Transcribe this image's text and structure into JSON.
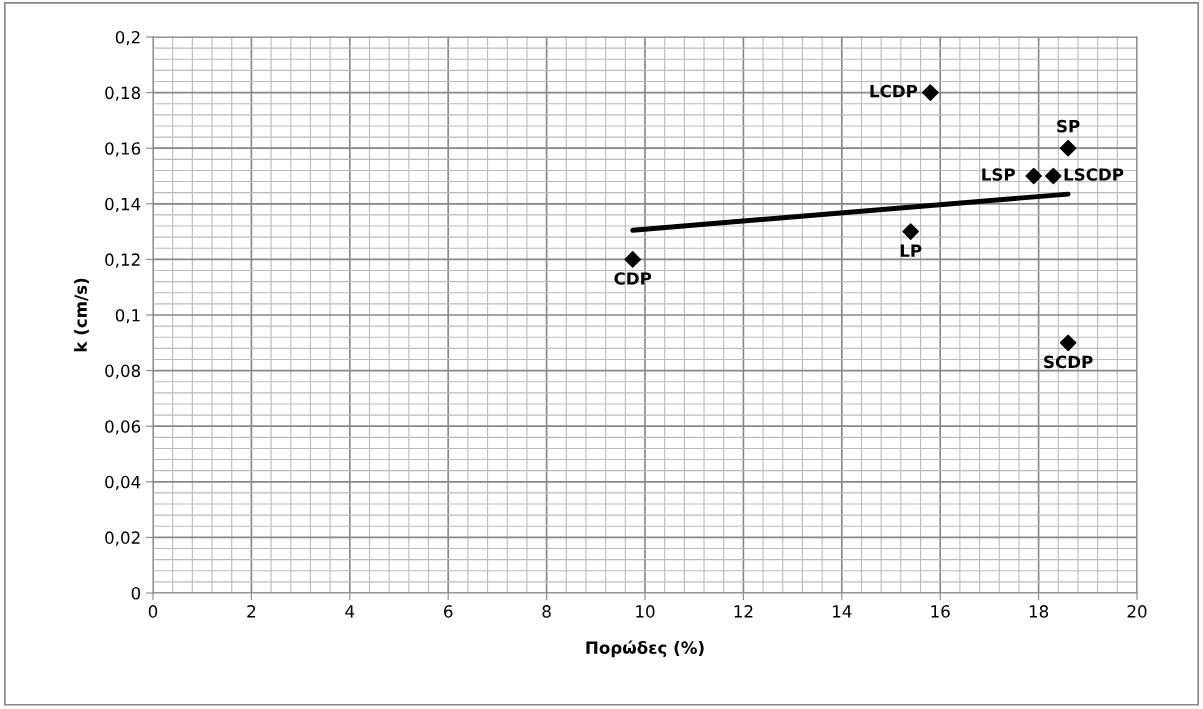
{
  "chart_data": {
    "type": "scatter",
    "xlabel": "Πορώδες (%)",
    "ylabel": "k (cm/s)",
    "xlim": [
      0,
      20
    ],
    "xticks": [
      0,
      2,
      4,
      6,
      8,
      10,
      12,
      14,
      16,
      18,
      20
    ],
    "ylim": [
      0,
      0.2
    ],
    "yticks": [
      {
        "value": 0,
        "label": "0"
      },
      {
        "value": 0.02,
        "label": "0,02"
      },
      {
        "value": 0.04,
        "label": "0,04"
      },
      {
        "value": 0.06,
        "label": "0,06"
      },
      {
        "value": 0.08,
        "label": "0,08"
      },
      {
        "value": 0.1,
        "label": "0,1"
      },
      {
        "value": 0.12,
        "label": "0,12"
      },
      {
        "value": 0.14,
        "label": "0,14"
      },
      {
        "value": 0.16,
        "label": "0,16"
      },
      {
        "value": 0.18,
        "label": "0,18"
      },
      {
        "value": 0.2,
        "label": "0,2"
      }
    ],
    "grid": true,
    "legend": false,
    "series": [
      {
        "color": "#000000",
        "marker": "diamond",
        "x": [
          9.75,
          15.4,
          15.8,
          18.6,
          17.9,
          18.3,
          18.6
        ],
        "values": [
          0.12,
          0.13,
          0.18,
          0.16,
          0.15,
          0.15,
          0.09
        ],
        "value_labels": [
          "CDP",
          "LP",
          "LCDP",
          "SP",
          "LSP",
          "LSCDP",
          "SCDP"
        ]
      },
      {
        "type": "line",
        "color": "#000000",
        "marker": "none",
        "line_style": "solid",
        "x": [
          9.75,
          18.6
        ],
        "values": [
          0.1305,
          0.1435
        ]
      }
    ]
  }
}
